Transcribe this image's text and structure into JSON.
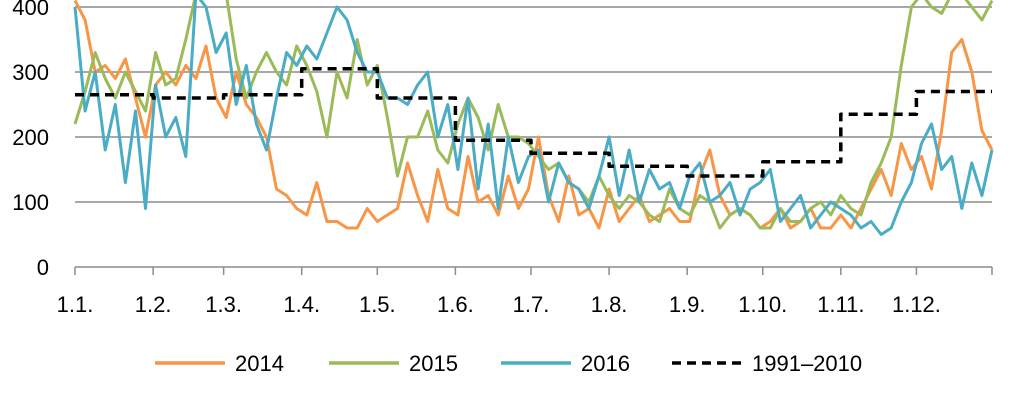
{
  "chart_data": {
    "type": "line",
    "title": "",
    "xlabel": "",
    "ylabel": "",
    "ylim": [
      0,
      400
    ],
    "yticks": [
      0,
      100,
      200,
      300,
      400
    ],
    "xticks": [
      "1.1.",
      "1.2.",
      "1.3.",
      "1.4.",
      "1.5.",
      "1.6.",
      "1.7.",
      "1.8.",
      "1.9.",
      "1.10.",
      "1.11.",
      "1.12."
    ],
    "grid": "horizontal",
    "legend_position": "bottom",
    "colors": {
      "2014": "#F79646",
      "2015": "#9BBB59",
      "2016": "#4BACC6",
      "1991–2010": "#000000"
    },
    "series": [
      {
        "name": "2014",
        "style": "solid",
        "x": [
          1,
          5,
          9,
          13,
          17,
          21,
          25,
          29,
          33,
          37,
          41,
          45,
          49,
          53,
          57,
          61,
          65,
          69,
          73,
          77,
          81,
          85,
          89,
          93,
          97,
          101,
          105,
          109,
          113,
          117,
          121,
          125,
          129,
          133,
          137,
          141,
          145,
          149,
          153,
          157,
          161,
          165,
          169,
          173,
          177,
          181,
          185,
          189,
          193,
          197,
          201,
          205,
          209,
          213,
          217,
          221,
          225,
          229,
          233,
          237,
          241,
          245,
          249,
          253,
          257,
          261,
          265,
          269,
          273,
          277,
          281,
          285,
          289,
          293,
          297,
          301,
          305,
          309,
          313,
          317,
          321,
          325,
          329,
          333,
          337,
          341,
          345,
          349,
          353,
          357,
          361,
          365
        ],
        "values": [
          410,
          380,
          300,
          310,
          290,
          320,
          260,
          200,
          280,
          300,
          280,
          310,
          290,
          340,
          260,
          230,
          300,
          250,
          230,
          200,
          120,
          110,
          90,
          80,
          130,
          70,
          70,
          60,
          60,
          90,
          70,
          80,
          90,
          160,
          110,
          70,
          150,
          90,
          80,
          170,
          100,
          110,
          80,
          140,
          90,
          120,
          200,
          110,
          70,
          140,
          80,
          90,
          60,
          120,
          70,
          90,
          110,
          70,
          80,
          90,
          70,
          70,
          140,
          180,
          110,
          80,
          90,
          80,
          60,
          70,
          90,
          60,
          70,
          90,
          60,
          60,
          80,
          60,
          90,
          120,
          150,
          110,
          190,
          150,
          170,
          120,
          210,
          330,
          350,
          300,
          210,
          180
        ]
      },
      {
        "name": "2015",
        "style": "solid",
        "x": [
          1,
          5,
          9,
          13,
          17,
          21,
          25,
          29,
          33,
          37,
          41,
          45,
          49,
          53,
          57,
          61,
          65,
          69,
          73,
          77,
          81,
          85,
          89,
          93,
          97,
          101,
          105,
          109,
          113,
          117,
          121,
          125,
          129,
          133,
          137,
          141,
          145,
          149,
          153,
          157,
          161,
          165,
          169,
          173,
          177,
          181,
          185,
          189,
          193,
          197,
          201,
          205,
          209,
          213,
          217,
          221,
          225,
          229,
          233,
          237,
          241,
          245,
          249,
          253,
          257,
          261,
          265,
          269,
          273,
          277,
          281,
          285,
          289,
          293,
          297,
          301,
          305,
          309,
          313,
          317,
          321,
          325,
          329,
          333,
          337,
          341,
          345,
          349,
          353,
          357,
          361,
          365
        ],
        "values": [
          220,
          270,
          330,
          290,
          260,
          300,
          270,
          240,
          330,
          280,
          290,
          350,
          420,
          450,
          480,
          430,
          320,
          260,
          300,
          330,
          300,
          280,
          340,
          310,
          270,
          200,
          300,
          260,
          350,
          280,
          310,
          230,
          140,
          200,
          200,
          240,
          180,
          160,
          220,
          260,
          230,
          180,
          250,
          200,
          200,
          190,
          170,
          150,
          160,
          130,
          120,
          100,
          140,
          110,
          90,
          110,
          100,
          80,
          70,
          120,
          90,
          80,
          110,
          100,
          60,
          80,
          90,
          80,
          60,
          60,
          90,
          70,
          70,
          90,
          100,
          80,
          110,
          90,
          80,
          130,
          160,
          200,
          310,
          400,
          430,
          400,
          390,
          420,
          450,
          400,
          380,
          410
        ]
      },
      {
        "name": "2016",
        "style": "solid",
        "x": [
          1,
          5,
          9,
          13,
          17,
          21,
          25,
          29,
          33,
          37,
          41,
          45,
          49,
          53,
          57,
          61,
          65,
          69,
          73,
          77,
          81,
          85,
          89,
          93,
          97,
          101,
          105,
          109,
          113,
          117,
          121,
          125,
          129,
          133,
          137,
          141,
          145,
          149,
          153,
          157,
          161,
          165,
          169,
          173,
          177,
          181,
          185,
          189,
          193,
          197,
          201,
          205,
          209,
          213,
          217,
          221,
          225,
          229,
          233,
          237,
          241,
          245,
          249,
          253,
          257,
          261,
          265,
          269,
          273,
          277,
          281,
          285,
          289,
          293,
          297,
          301,
          305,
          309,
          313,
          317,
          321,
          325,
          329,
          333,
          337,
          341,
          345,
          349,
          353,
          357,
          361,
          365
        ],
        "values": [
          400,
          240,
          300,
          180,
          250,
          130,
          240,
          90,
          280,
          200,
          230,
          170,
          440,
          400,
          330,
          360,
          250,
          310,
          220,
          180,
          260,
          330,
          310,
          340,
          320,
          360,
          400,
          380,
          330,
          300,
          300,
          260,
          260,
          250,
          280,
          300,
          200,
          250,
          150,
          260,
          120,
          220,
          90,
          200,
          130,
          170,
          180,
          100,
          160,
          130,
          120,
          90,
          140,
          200,
          110,
          180,
          100,
          150,
          120,
          130,
          90,
          140,
          160,
          100,
          110,
          130,
          80,
          120,
          130,
          150,
          70,
          90,
          110,
          60,
          80,
          100,
          90,
          80,
          60,
          70,
          50,
          60,
          100,
          130,
          190,
          220,
          150,
          170,
          90,
          160,
          110,
          180
        ]
      },
      {
        "name": "1991–2010",
        "style": "dashed",
        "x": [
          1,
          32,
          32,
          60,
          60,
          91,
          91,
          121,
          121,
          152,
          152,
          182,
          182,
          213,
          213,
          244,
          244,
          274,
          274,
          305,
          305,
          335,
          335,
          365
        ],
        "values": [
          265,
          265,
          260,
          260,
          265,
          265,
          305,
          305,
          260,
          260,
          195,
          195,
          175,
          175,
          155,
          155,
          140,
          140,
          162,
          162,
          235,
          235,
          270,
          270
        ]
      }
    ]
  }
}
